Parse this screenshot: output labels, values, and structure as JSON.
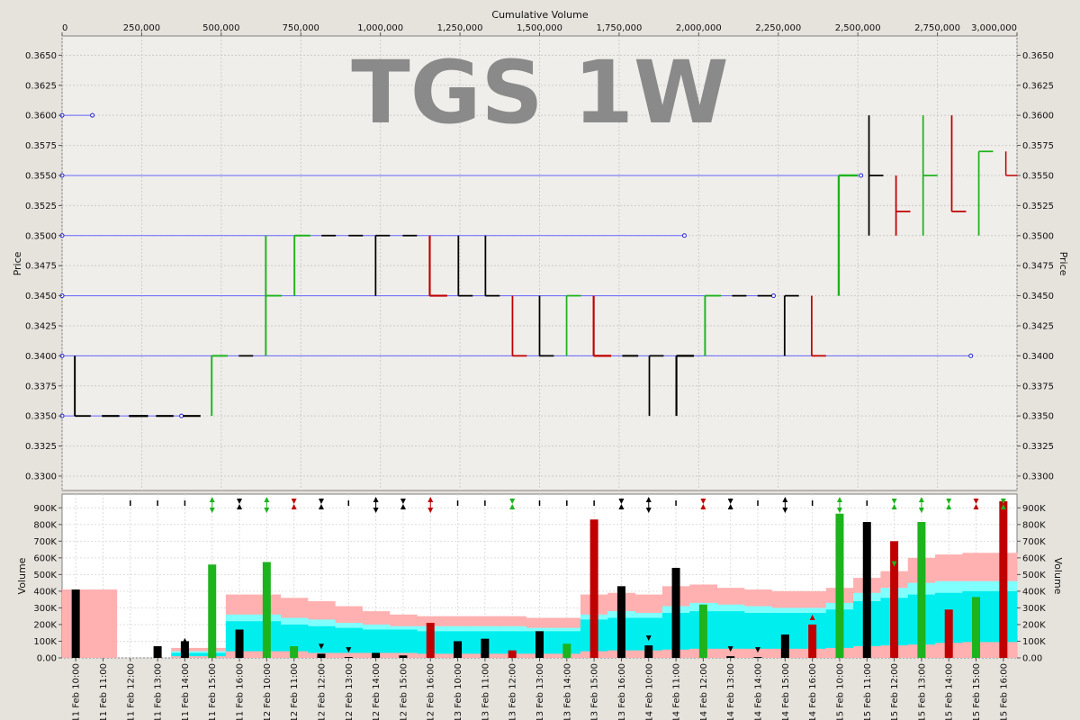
{
  "chart_data": [
    {
      "type": "line",
      "watermark": "TGS 1W",
      "xlabel": "Cumulative Volume",
      "ylabel": "Price",
      "xlim": [
        0,
        3000000
      ],
      "ylim": [
        0.3288,
        0.3666
      ],
      "x_ticks": [
        0,
        250000,
        500000,
        750000,
        1000000,
        1250000,
        1500000,
        1750000,
        2000000,
        2250000,
        2500000,
        2750000,
        3000000
      ],
      "x_tick_labels": [
        "0",
        "250,000",
        "500,000",
        "750,000",
        "1,000,000",
        "1,250,000",
        "1,500,000",
        "1,750,000",
        "2,000,000",
        "2,250,000",
        "2,500,000",
        "2,750,000",
        "3,000,000"
      ],
      "y_ticks": [
        0.33,
        0.3325,
        0.335,
        0.3375,
        0.34,
        0.3425,
        0.345,
        0.3475,
        0.35,
        0.3525,
        0.355,
        0.3575,
        0.36,
        0.3625,
        0.365
      ],
      "y_tick_labels": [
        "0.3300",
        "0.3325",
        "0.3350",
        "0.3375",
        "0.3400",
        "0.3425",
        "0.3450",
        "0.3475",
        "0.3500",
        "0.3525",
        "0.3550",
        "0.3575",
        "0.3600",
        "0.3625",
        "0.3650"
      ],
      "grid": true,
      "colors": {
        "up": "#1db31d",
        "down": "#c00000",
        "flat": "#000000",
        "level": "#6666ff"
      },
      "levels": [
        {
          "price": 0.36,
          "x0": 0,
          "x1": 95000
        },
        {
          "price": 0.355,
          "x0": 0,
          "x1": 2510000
        },
        {
          "price": 0.35,
          "x0": 0,
          "x1": 1955000
        },
        {
          "price": 0.345,
          "x0": 0,
          "x1": 2235000
        },
        {
          "price": 0.34,
          "x0": 0,
          "x1": 2855000
        },
        {
          "price": 0.335,
          "x0": 0,
          "x1": 375000
        }
      ],
      "bars": [
        {
          "x0": 40000,
          "x1": 90000,
          "open": 0.34,
          "high": 0.34,
          "low": 0.335,
          "close": 0.335,
          "dir": "flat"
        },
        {
          "x0": 125000,
          "x1": 180000,
          "open": 0.335,
          "high": 0.335,
          "low": 0.335,
          "close": 0.335,
          "dir": "flat"
        },
        {
          "x0": 210000,
          "x1": 270000,
          "open": 0.335,
          "high": 0.335,
          "low": 0.335,
          "close": 0.335,
          "dir": "flat"
        },
        {
          "x0": 295000,
          "x1": 350000,
          "open": 0.335,
          "high": 0.335,
          "low": 0.335,
          "close": 0.335,
          "dir": "flat"
        },
        {
          "x0": 380000,
          "x1": 435000,
          "open": 0.335,
          "high": 0.335,
          "low": 0.335,
          "close": 0.335,
          "dir": "flat"
        },
        {
          "x0": 470000,
          "x1": 520000,
          "open": 0.335,
          "high": 0.34,
          "low": 0.335,
          "close": 0.34,
          "dir": "up"
        },
        {
          "x0": 555000,
          "x1": 600000,
          "open": 0.34,
          "high": 0.34,
          "low": 0.34,
          "close": 0.34,
          "dir": "flat"
        },
        {
          "x0": 640000,
          "x1": 690000,
          "open": 0.34,
          "high": 0.35,
          "low": 0.34,
          "close": 0.345,
          "dir": "up"
        },
        {
          "x0": 730000,
          "x1": 780000,
          "open": 0.345,
          "high": 0.35,
          "low": 0.345,
          "close": 0.35,
          "dir": "up"
        },
        {
          "x0": 815000,
          "x1": 860000,
          "open": 0.35,
          "high": 0.35,
          "low": 0.35,
          "close": 0.35,
          "dir": "flat"
        },
        {
          "x0": 900000,
          "x1": 945000,
          "open": 0.35,
          "high": 0.35,
          "low": 0.35,
          "close": 0.35,
          "dir": "flat"
        },
        {
          "x0": 985000,
          "x1": 1030000,
          "open": 0.345,
          "high": 0.35,
          "low": 0.345,
          "close": 0.35,
          "dir": "flat"
        },
        {
          "x0": 1070000,
          "x1": 1115000,
          "open": 0.35,
          "high": 0.35,
          "low": 0.35,
          "close": 0.35,
          "dir": "flat"
        },
        {
          "x0": 1155000,
          "x1": 1210000,
          "open": 0.35,
          "high": 0.35,
          "low": 0.345,
          "close": 0.345,
          "dir": "down"
        },
        {
          "x0": 1245000,
          "x1": 1290000,
          "open": 0.35,
          "high": 0.35,
          "low": 0.345,
          "close": 0.345,
          "dir": "flat"
        },
        {
          "x0": 1330000,
          "x1": 1375000,
          "open": 0.35,
          "high": 0.35,
          "low": 0.345,
          "close": 0.345,
          "dir": "flat"
        },
        {
          "x0": 1415000,
          "x1": 1460000,
          "open": 0.345,
          "high": 0.345,
          "low": 0.34,
          "close": 0.34,
          "dir": "down"
        },
        {
          "x0": 1500000,
          "x1": 1545000,
          "open": 0.345,
          "high": 0.345,
          "low": 0.34,
          "close": 0.34,
          "dir": "flat"
        },
        {
          "x0": 1585000,
          "x1": 1630000,
          "open": 0.34,
          "high": 0.345,
          "low": 0.34,
          "close": 0.345,
          "dir": "up"
        },
        {
          "x0": 1670000,
          "x1": 1725000,
          "open": 0.345,
          "high": 0.345,
          "low": 0.34,
          "close": 0.34,
          "dir": "down"
        },
        {
          "x0": 1760000,
          "x1": 1810000,
          "open": 0.34,
          "high": 0.34,
          "low": 0.34,
          "close": 0.34,
          "dir": "flat"
        },
        {
          "x0": 1845000,
          "x1": 1890000,
          "open": 0.34,
          "high": 0.34,
          "low": 0.335,
          "close": 0.34,
          "dir": "flat"
        },
        {
          "x0": 1930000,
          "x1": 1985000,
          "open": 0.34,
          "high": 0.34,
          "low": 0.335,
          "close": 0.34,
          "dir": "flat"
        },
        {
          "x0": 2020000,
          "x1": 2070000,
          "open": 0.34,
          "high": 0.345,
          "low": 0.34,
          "close": 0.345,
          "dir": "up"
        },
        {
          "x0": 2105000,
          "x1": 2150000,
          "open": 0.345,
          "high": 0.345,
          "low": 0.345,
          "close": 0.345,
          "dir": "flat"
        },
        {
          "x0": 2185000,
          "x1": 2230000,
          "open": 0.345,
          "high": 0.345,
          "low": 0.345,
          "close": 0.345,
          "dir": "flat"
        },
        {
          "x0": 2270000,
          "x1": 2315000,
          "open": 0.345,
          "high": 0.345,
          "low": 0.34,
          "close": 0.345,
          "dir": "flat"
        },
        {
          "x0": 2355000,
          "x1": 2400000,
          "open": 0.345,
          "high": 0.345,
          "low": 0.34,
          "close": 0.34,
          "dir": "down"
        },
        {
          "x0": 2440000,
          "x1": 2500000,
          "open": 0.345,
          "high": 0.355,
          "low": 0.345,
          "close": 0.355,
          "dir": "up"
        },
        {
          "x0": 2535000,
          "x1": 2580000,
          "open": 0.355,
          "high": 0.36,
          "low": 0.35,
          "close": 0.355,
          "dir": "flat"
        },
        {
          "x0": 2620000,
          "x1": 2665000,
          "open": 0.355,
          "high": 0.355,
          "low": 0.35,
          "close": 0.352,
          "dir": "down"
        },
        {
          "x0": 2705000,
          "x1": 2750000,
          "open": 0.35,
          "high": 0.36,
          "low": 0.35,
          "close": 0.355,
          "dir": "up"
        },
        {
          "x0": 2795000,
          "x1": 2840000,
          "open": 0.36,
          "high": 0.36,
          "low": 0.352,
          "close": 0.352,
          "dir": "down"
        },
        {
          "x0": 2880000,
          "x1": 2925000,
          "open": 0.35,
          "high": 0.357,
          "low": 0.35,
          "close": 0.357,
          "dir": "up"
        },
        {
          "x0": 2965000,
          "x1": 3000000,
          "open": 0.357,
          "high": 0.357,
          "low": 0.355,
          "close": 0.355,
          "dir": "down"
        }
      ]
    },
    {
      "type": "bar",
      "ylabel": "Volume",
      "ylim": [
        0,
        950000
      ],
      "y_ticks": [
        0,
        100000,
        200000,
        300000,
        400000,
        500000,
        600000,
        700000,
        800000,
        900000
      ],
      "y_tick_labels": [
        "0.00",
        "100K",
        "200K",
        "300K",
        "400K",
        "500K",
        "600K",
        "700K",
        "800K",
        "900K"
      ],
      "categories": [
        "11 Feb 10:00",
        "11 Feb 11:00",
        "11 Feb 12:00",
        "11 Feb 13:00",
        "11 Feb 14:00",
        "11 Feb 15:00",
        "11 Feb 16:00",
        "12 Feb 10:00",
        "12 Feb 11:00",
        "12 Feb 12:00",
        "12 Feb 13:00",
        "12 Feb 14:00",
        "12 Feb 15:00",
        "12 Feb 16:00",
        "13 Feb 10:00",
        "13 Feb 11:00",
        "13 Feb 12:00",
        "13 Feb 13:00",
        "13 Feb 14:00",
        "13 Feb 15:00",
        "13 Feb 16:00",
        "14 Feb 10:00",
        "14 Feb 11:00",
        "14 Feb 12:00",
        "14 Feb 13:00",
        "14 Feb 14:00",
        "14 Feb 15:00",
        "14 Feb 16:00",
        "15 Feb 10:00",
        "15 Feb 11:00",
        "15 Feb 12:00",
        "15 Feb 13:00",
        "15 Feb 14:00",
        "15 Feb 15:00",
        "15 Feb 16:00"
      ],
      "values": [
        410000,
        0,
        0,
        70000,
        100000,
        560000,
        170000,
        575000,
        70000,
        25000,
        5000,
        30000,
        15000,
        210000,
        100000,
        115000,
        45000,
        160000,
        85000,
        830000,
        430000,
        75000,
        540000,
        320000,
        10000,
        5000,
        140000,
        200000,
        865000,
        815000,
        700000,
        815000,
        290000,
        365000,
        940000
      ],
      "dirs": [
        "flat",
        "flat",
        "flat",
        "flat",
        "flat",
        "up",
        "flat",
        "up",
        "up",
        "flat",
        "flat",
        "flat",
        "flat",
        "down",
        "flat",
        "flat",
        "down",
        "flat",
        "up",
        "down",
        "flat",
        "flat",
        "flat",
        "up",
        "flat",
        "flat",
        "flat",
        "down",
        "up",
        "flat",
        "down",
        "up",
        "down",
        "up",
        "down"
      ],
      "band_outer": [
        410000,
        410000,
        0,
        0,
        60000,
        60000,
        380000,
        380000,
        360000,
        340000,
        310000,
        280000,
        260000,
        250000,
        250000,
        250000,
        250000,
        240000,
        240000,
        380000,
        390000,
        380000,
        430000,
        440000,
        420000,
        410000,
        400000,
        400000,
        420000,
        480000,
        520000,
        600000,
        620000,
        630000,
        630000
      ],
      "band_mid": [
        0,
        0,
        0,
        0,
        40000,
        40000,
        260000,
        260000,
        240000,
        230000,
        210000,
        200000,
        190000,
        190000,
        190000,
        190000,
        190000,
        180000,
        180000,
        260000,
        280000,
        270000,
        310000,
        330000,
        320000,
        310000,
        300000,
        300000,
        330000,
        390000,
        420000,
        450000,
        460000,
        460000,
        460000
      ],
      "band_inner": [
        0,
        0,
        0,
        0,
        30000,
        30000,
        220000,
        220000,
        200000,
        190000,
        180000,
        170000,
        170000,
        160000,
        160000,
        160000,
        160000,
        160000,
        160000,
        230000,
        240000,
        240000,
        270000,
        280000,
        280000,
        270000,
        270000,
        270000,
        290000,
        340000,
        360000,
        380000,
        390000,
        400000,
        400000
      ],
      "band_low": [
        0,
        0,
        0,
        0,
        10000,
        10000,
        40000,
        40000,
        40000,
        30000,
        30000,
        30000,
        30000,
        25000,
        25000,
        25000,
        25000,
        25000,
        25000,
        40000,
        45000,
        45000,
        50000,
        55000,
        55000,
        55000,
        55000,
        55000,
        60000,
        70000,
        75000,
        80000,
        90000,
        95000,
        95000
      ],
      "band_colors": {
        "outer": "#ffb0b0",
        "mid": "#80ffff",
        "inner": "#00eeee",
        "low": "#ffb0b0"
      },
      "markers": [
        {
          "i": 2,
          "type": "dot",
          "color": "#000000"
        },
        {
          "i": 3,
          "type": "dot",
          "color": "#000000"
        },
        {
          "i": 4,
          "type": "dot",
          "color": "#000000"
        },
        {
          "i": 5,
          "type": "both",
          "color": "#1db31d"
        },
        {
          "i": 6,
          "type": "in",
          "color": "#000000"
        },
        {
          "i": 7,
          "type": "both",
          "color": "#1db31d"
        },
        {
          "i": 8,
          "type": "in",
          "color": "#c00000"
        },
        {
          "i": 9,
          "type": "in",
          "color": "#000000"
        },
        {
          "i": 10,
          "type": "dot",
          "color": "#000000"
        },
        {
          "i": 11,
          "type": "both",
          "color": "#000000"
        },
        {
          "i": 12,
          "type": "in",
          "color": "#000000"
        },
        {
          "i": 13,
          "type": "both",
          "color": "#c00000"
        },
        {
          "i": 14,
          "type": "dot",
          "color": "#000000"
        },
        {
          "i": 15,
          "type": "dot",
          "color": "#000000"
        },
        {
          "i": 16,
          "type": "in",
          "color": "#1db31d"
        },
        {
          "i": 17,
          "type": "dot",
          "color": "#000000"
        },
        {
          "i": 18,
          "type": "dot",
          "color": "#000000"
        },
        {
          "i": 19,
          "type": "dot",
          "color": "#000000"
        },
        {
          "i": 20,
          "type": "in",
          "color": "#000000"
        },
        {
          "i": 21,
          "type": "both",
          "color": "#000000"
        },
        {
          "i": 22,
          "type": "dot",
          "color": "#000000"
        },
        {
          "i": 23,
          "type": "in",
          "color": "#c00000"
        },
        {
          "i": 24,
          "type": "in",
          "color": "#000000"
        },
        {
          "i": 25,
          "type": "dot",
          "color": "#000000"
        },
        {
          "i": 26,
          "type": "both",
          "color": "#000000"
        },
        {
          "i": 27,
          "type": "dot",
          "color": "#000000"
        },
        {
          "i": 28,
          "type": "both",
          "color": "#1db31d"
        },
        {
          "i": 29,
          "type": "dot",
          "color": "#000000"
        },
        {
          "i": 30,
          "type": "in",
          "color": "#1db31d"
        },
        {
          "i": 31,
          "type": "both",
          "color": "#1db31d"
        },
        {
          "i": 32,
          "type": "in",
          "color": "#1db31d"
        },
        {
          "i": 33,
          "type": "in",
          "color": "#c00000"
        },
        {
          "i": 34,
          "type": "in",
          "color": "#1db31d"
        }
      ],
      "bar_arrows": [
        {
          "i": 4,
          "dir": "up",
          "color": "#000000"
        },
        {
          "i": 5,
          "dir": "up",
          "color": "#1db31d"
        },
        {
          "i": 9,
          "dir": "down",
          "color": "#000000"
        },
        {
          "i": 10,
          "dir": "down",
          "color": "#000000"
        },
        {
          "i": 21,
          "dir": "down",
          "color": "#000000"
        },
        {
          "i": 24,
          "dir": "down",
          "color": "#000000"
        },
        {
          "i": 25,
          "dir": "down",
          "color": "#000000"
        },
        {
          "i": 27,
          "dir": "up",
          "color": "#c00000"
        },
        {
          "i": 30,
          "dir": "down",
          "color": "#1db31d"
        }
      ]
    }
  ]
}
